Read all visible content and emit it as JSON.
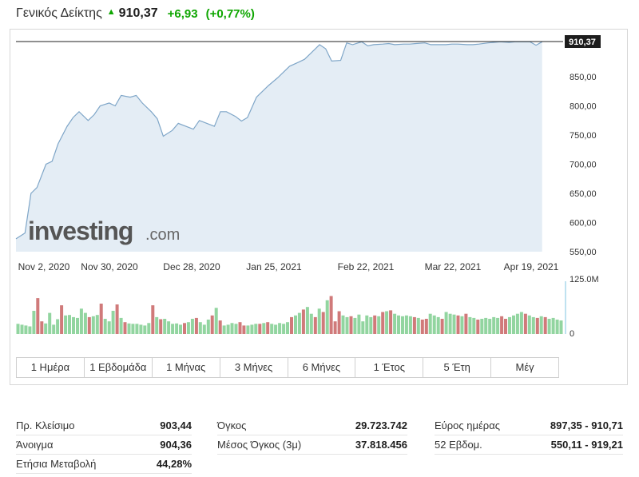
{
  "header": {
    "name": "Γενικός Δείκτης",
    "last": "910,37",
    "change": "+6,93",
    "change_pct": "(+0,77%)"
  },
  "watermark": {
    "brand": "investing",
    "suffix": ".com"
  },
  "colors": {
    "up": "#0ea600",
    "line": "#7fa6c8",
    "area": "#e4edf5",
    "vol_up": "#92d5a0",
    "vol_down": "#d07a7a"
  },
  "timeframes": [
    "1 Ημέρα",
    "1 Εβδομάδα",
    "1 Μήνας",
    "3 Μήνες",
    "6 Μήνες",
    "1 Έτος",
    "5 Έτη",
    "Μέγ"
  ],
  "chart_data": {
    "type": "area",
    "x_ticks": [
      "Nov 2, 2020",
      "Nov 30, 2020",
      "Dec 28, 2020",
      "Jan 25, 2021",
      "Feb 22, 2021",
      "Mar 22, 2021",
      "Apr 19, 2021"
    ],
    "y_ticks": [
      "550,00",
      "600,00",
      "650,00",
      "700,00",
      "750,00",
      "800,00",
      "850,00"
    ],
    "ylim": [
      550,
      910
    ],
    "last_value": 910.37,
    "last_label": "910,37",
    "x": [
      "2020-10-30",
      "2020-11-02",
      "2020-11-04",
      "2020-11-06",
      "2020-11-09",
      "2020-11-11",
      "2020-11-13",
      "2020-11-16",
      "2020-11-18",
      "2020-11-20",
      "2020-11-23",
      "2020-11-25",
      "2020-11-27",
      "2020-11-30",
      "2020-12-02",
      "2020-12-04",
      "2020-12-07",
      "2020-12-09",
      "2020-12-11",
      "2020-12-14",
      "2020-12-16",
      "2020-12-18",
      "2020-12-21",
      "2020-12-23",
      "2020-12-28",
      "2020-12-30",
      "2021-01-04",
      "2021-01-06",
      "2021-01-08",
      "2021-01-11",
      "2021-01-13",
      "2021-01-15",
      "2021-01-18",
      "2021-01-20",
      "2021-01-22",
      "2021-01-25",
      "2021-01-27",
      "2021-01-29",
      "2021-02-01",
      "2021-02-03",
      "2021-02-05",
      "2021-02-08",
      "2021-02-10",
      "2021-02-12",
      "2021-02-15",
      "2021-02-17",
      "2021-02-19",
      "2021-02-22",
      "2021-02-24",
      "2021-02-26",
      "2021-03-01",
      "2021-03-03",
      "2021-03-05",
      "2021-03-08",
      "2021-03-10",
      "2021-03-12",
      "2021-03-15",
      "2021-03-17",
      "2021-03-19",
      "2021-03-22",
      "2021-03-24",
      "2021-03-26",
      "2021-03-29",
      "2021-03-31",
      "2021-04-02",
      "2021-04-05",
      "2021-04-07",
      "2021-04-09",
      "2021-04-12",
      "2021-04-14",
      "2021-04-16",
      "2021-04-19",
      "2021-04-21",
      "2021-04-23"
    ],
    "values": [
      572,
      582,
      650,
      660,
      700,
      705,
      735,
      765,
      780,
      790,
      775,
      785,
      800,
      805,
      800,
      818,
      815,
      818,
      805,
      790,
      778,
      748,
      758,
      770,
      760,
      775,
      765,
      790,
      790,
      782,
      774,
      780,
      815,
      825,
      835,
      848,
      858,
      868,
      875,
      880,
      890,
      905,
      898,
      877,
      878,
      908,
      905,
      910,
      903,
      905,
      906,
      907,
      905,
      906,
      906,
      907,
      908,
      905,
      905,
      905,
      906,
      906,
      905,
      905,
      906,
      908,
      909,
      910,
      909,
      910,
      910,
      910,
      904,
      910
    ],
    "volume": {
      "max_label": "125.0M",
      "min_label": "0",
      "max": 125,
      "values": [
        24,
        22,
        20,
        18,
        55,
        85,
        30,
        25,
        50,
        22,
        35,
        68,
        44,
        45,
        40,
        38,
        60,
        50,
        40,
        42,
        45,
        72,
        36,
        30,
        55,
        70,
        38,
        28,
        25,
        24,
        24,
        22,
        20,
        26,
        68,
        40,
        35,
        36,
        30,
        24,
        25,
        22,
        26,
        28,
        36,
        38,
        28,
        22,
        34,
        44,
        62,
        32,
        20,
        22,
        26,
        24,
        28,
        20,
        20,
        22,
        24,
        24,
        26,
        28,
        24,
        22,
        26,
        24,
        28,
        40,
        44,
        50,
        58,
        64,
        48,
        40,
        60,
        52,
        80,
        90,
        30,
        54,
        44,
        40,
        42,
        38,
        46,
        30,
        44,
        40,
        44,
        42,
        52,
        54,
        56,
        48,
        44,
        42,
        44,
        42,
        40,
        38,
        34,
        36,
        48,
        44,
        40,
        36,
        52,
        48,
        46,
        44,
        42,
        48,
        40,
        38,
        34,
        36,
        38,
        36,
        40,
        38,
        42,
        36,
        40,
        44,
        48,
        52,
        48,
        44,
        40,
        38,
        42,
        40,
        36,
        38,
        34,
        32
      ],
      "down": [
        0,
        0,
        0,
        0,
        0,
        1,
        1,
        0,
        0,
        0,
        0,
        1,
        0,
        0,
        0,
        0,
        0,
        0,
        1,
        0,
        0,
        1,
        0,
        0,
        0,
        1,
        0,
        1,
        0,
        0,
        0,
        0,
        0,
        0,
        1,
        0,
        1,
        0,
        0,
        0,
        0,
        0,
        1,
        0,
        0,
        1,
        0,
        0,
        0,
        1,
        0,
        1,
        0,
        0,
        0,
        0,
        1,
        1,
        0,
        0,
        0,
        1,
        0,
        1,
        0,
        0,
        0,
        0,
        0,
        1,
        0,
        0,
        1,
        0,
        0,
        1,
        0,
        1,
        0,
        1,
        1,
        1,
        0,
        0,
        1,
        0,
        0,
        0,
        0,
        0,
        1,
        0,
        1,
        0,
        1,
        0,
        0,
        0,
        0,
        0,
        1,
        0,
        1,
        1,
        0,
        0,
        0,
        1,
        0,
        0,
        0,
        1,
        0,
        1,
        0,
        0,
        1,
        0,
        0,
        0,
        0,
        0,
        1,
        1,
        0,
        0,
        0,
        0,
        1,
        0,
        0,
        1,
        0,
        1,
        0,
        0,
        0,
        0
      ]
    }
  },
  "stats": {
    "col1": [
      {
        "label": "Πρ. Κλείσιμο",
        "value": "903,44"
      },
      {
        "label": "Άνοιγμα",
        "value": "904,36"
      },
      {
        "label": "Ετήσια Μεταβολή",
        "value": "44,28%"
      }
    ],
    "col2": [
      {
        "label": "Όγκος",
        "value": "29.723.742"
      },
      {
        "label": "Μέσος Όγκος (3μ)",
        "value": "37.818.456"
      }
    ],
    "col3": [
      {
        "label": "Εύρος ημέρας",
        "value": "897,35 - 910,71"
      },
      {
        "label": "52 Εβδομ.",
        "value": "550,11 - 919,21"
      }
    ]
  }
}
